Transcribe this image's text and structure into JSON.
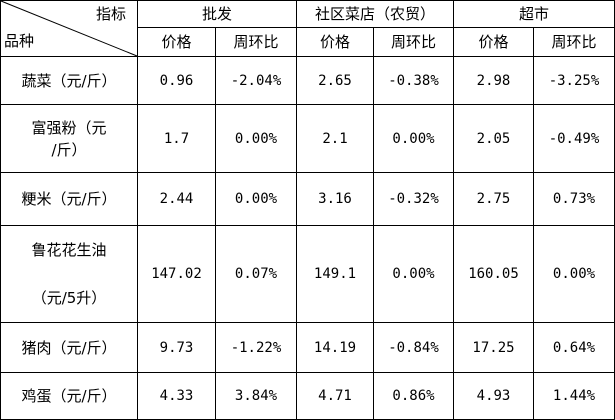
{
  "header": {
    "corner_top": "指标",
    "corner_bottom": "品种",
    "groups": [
      "批发",
      "社区菜店（农贸）",
      "超市"
    ],
    "sub": [
      "价格",
      "周环比",
      "价格",
      "周环比",
      "价格",
      "周环比"
    ]
  },
  "rows": [
    {
      "name": [
        "蔬菜（元/斤）"
      ],
      "cells": [
        "0.96",
        "-2.04%",
        "2.65",
        "-0.38%",
        "2.98",
        "-3.25%"
      ]
    },
    {
      "name": [
        "富强粉（元",
        "/斤）"
      ],
      "cells": [
        "1.7",
        "0.00%",
        "2.1",
        "0.00%",
        "2.05",
        "-0.49%"
      ]
    },
    {
      "name": [
        "粳米（元/斤）"
      ],
      "cells": [
        "2.44",
        "0.00%",
        "3.16",
        "-0.32%",
        "2.75",
        "0.73%"
      ]
    },
    {
      "name": [
        "鲁花花生油",
        "（元/5升）"
      ],
      "cells": [
        "147.02",
        "0.07%",
        "149.1",
        "0.00%",
        "160.05",
        "0.00%"
      ]
    },
    {
      "name": [
        "猪肉（元/斤）"
      ],
      "cells": [
        "9.73",
        "-1.22%",
        "14.19",
        "-0.84%",
        "17.25",
        "0.64%"
      ]
    },
    {
      "name": [
        "鸡蛋（元/斤）"
      ],
      "cells": [
        "4.33",
        "3.84%",
        "4.71",
        "0.86%",
        "4.93",
        "1.44%"
      ]
    }
  ]
}
